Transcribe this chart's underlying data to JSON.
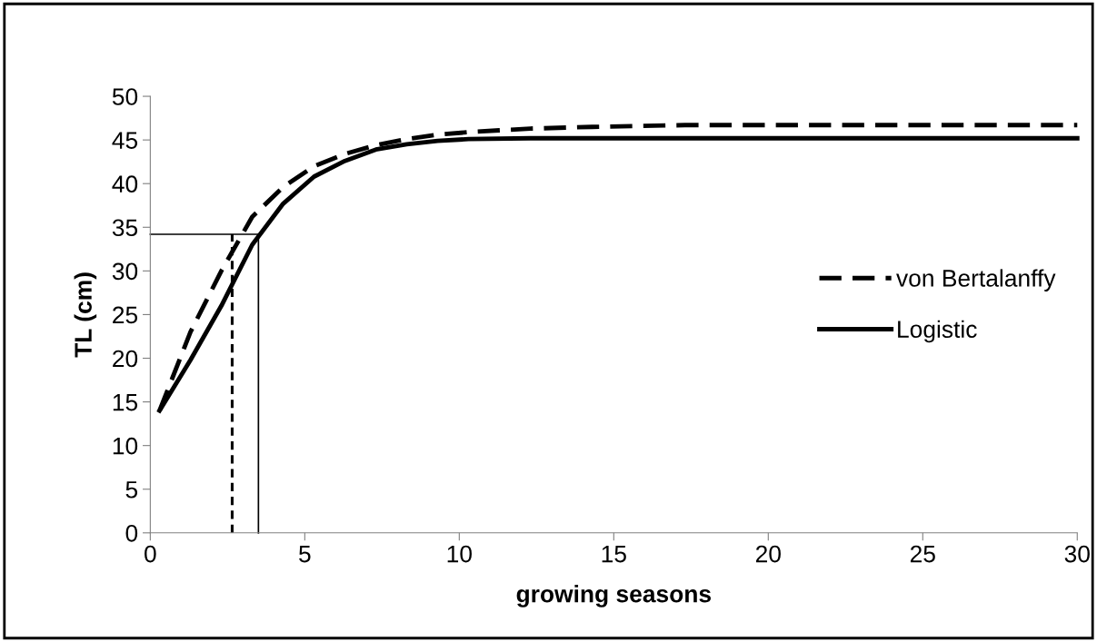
{
  "chart_data": {
    "type": "line",
    "xlabel": "growing seasons",
    "ylabel": "TL (cm)",
    "xlim": [
      0,
      30
    ],
    "xticks": [
      0,
      5,
      10,
      15,
      20,
      25,
      30
    ],
    "ylim": [
      0,
      50
    ],
    "yticks": [
      0,
      5,
      10,
      15,
      20,
      25,
      30,
      35,
      40,
      45,
      50
    ],
    "grid": false,
    "legend": "right",
    "marker": "none",
    "series": [
      {
        "name": "von Bertalanffy",
        "color": "#000000",
        "line_style": "dashed",
        "x": [
          0.3,
          1.3,
          2.3,
          3.3,
          4.3,
          5.3,
          6.3,
          7.3,
          8.3,
          9.3,
          10.3,
          11.3,
          12.3,
          14.3,
          17.3,
          20.3,
          25.3,
          30
        ],
        "values": [
          14,
          23,
          30,
          36.2,
          39.6,
          42,
          43.4,
          44.4,
          45.1,
          45.6,
          45.9,
          46.1,
          46.3,
          46.5,
          46.7,
          46.7,
          46.7,
          46.7
        ]
      },
      {
        "name": "Logistic",
        "color": "#000000",
        "line_style": "solid",
        "x": [
          0.3,
          1.3,
          2.3,
          3.3,
          4.3,
          5.3,
          6.3,
          7.3,
          8.3,
          9.3,
          10.3,
          12.3,
          15.3,
          20.3,
          25.3,
          30
        ],
        "values": [
          14,
          19.8,
          26,
          33,
          37.7,
          40.8,
          42.6,
          43.9,
          44.5,
          44.9,
          45.1,
          45.2,
          45.2,
          45.2,
          45.2,
          45.2
        ]
      },
      {
        "color": "#000000",
        "line_style": "solid",
        "x": [
          0,
          3.5
        ],
        "values": [
          34.2,
          34.2
        ]
      },
      {
        "color": "#000000",
        "line_style": "solid",
        "x": [
          3.5,
          3.5
        ],
        "values": [
          0,
          34.2
        ]
      },
      {
        "color": "#000000",
        "line_style": "dashed",
        "x": [
          2.65,
          2.65
        ],
        "values": [
          0,
          34.2
        ]
      }
    ]
  }
}
